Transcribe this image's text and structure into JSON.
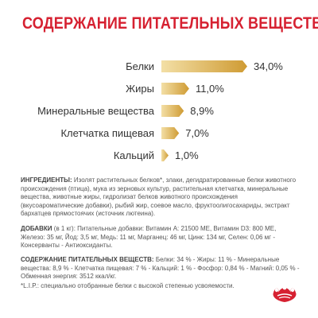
{
  "title": "СОДЕРЖАНИЕ ПИТАТЕЛЬНЫХ ВЕЩЕСТВ",
  "colors": {
    "title": "#d62131",
    "bar_light": "#f3dfa6",
    "bar_dark": "#cf9b33",
    "text": "#333333"
  },
  "chart_data": {
    "type": "bar",
    "orientation": "horizontal",
    "categories": [
      "Белки",
      "Жиры",
      "Минеральные вещества",
      "Клетчатка пищевая",
      "Кальций"
    ],
    "values": [
      34.0,
      11.0,
      8.9,
      7.0,
      1.0
    ],
    "value_labels": [
      "34,0%",
      "11,0%",
      "8,9%",
      "7,0%",
      "1,0%"
    ],
    "xlim": [
      0,
      34
    ],
    "title": "СОДЕРЖАНИЕ ПИТАТЕЛЬНЫХ ВЕЩЕСТВ",
    "grid": false,
    "legend": "none"
  },
  "ingredients": {
    "label": "ИНГРЕДИЕНТЫ:",
    "text": "Изолят растительных белков*, злаки, дегидратированные белки животного происхождения (птица), мука из зерновых культур, растительная клетчатка, минеральные вещества, животные жиры, гидролизат белков животного происхождения (вкусоароматические добавки), рыбий жир, соевое масло, фруктоолигосахариды, экстракт бархатцев прямостоячих (источник лютеина)."
  },
  "additives": {
    "label": "ДОБАВКИ",
    "text": "(в 1 кг): Питательные добавки: Витамин A: 21500 МЕ, Витамин D3: 800 МЕ, Железо: 35 мг, Йод: 3,5 мг, Медь: 11 мг, Марганец: 46 мг, Цинк: 134 мг, Селен: 0,06 мг - Консерванты - Антиоксиданты."
  },
  "nutrients": {
    "label": "СОДЕРЖАНИЕ ПИТАТЕЛЬНЫХ ВЕЩЕСТВ:",
    "text": "Белки: 34 % - Жиры: 11 % - Минеральные вещества: 8,9 % - Клетчатка пищевая: 7 % - Кальций: 1 % - Фосфор: 0,84 % - Магний: 0,05 % - Обменная энергия: 3512 ккал/кг."
  },
  "footnote": "*L.I.P.: специально отобранные белки с высокой степенью усвояемости.",
  "logo": {
    "icon": "royal-canin-crown-logo"
  }
}
